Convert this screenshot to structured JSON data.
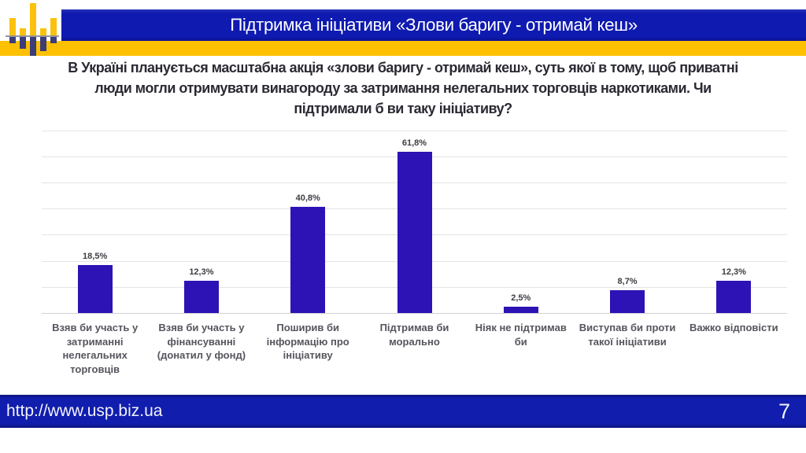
{
  "slide": {
    "header_title": "Підтримка ініціативи «Злови баригу - отримай кеш»",
    "question": "В Україні планується масштабна акція «злови баригу - отримай кеш», суть якої в тому, щоб приватні\nлюди могли отримувати винагороду за затримання нелегальних торговців наркотиками. Чи\nпідтримали б ви таку ініціативу?",
    "footer_url": "http://www.usp.biz.ua",
    "page_number": "7"
  },
  "colors": {
    "header_footer_blue": "#101bb0",
    "bar_blue": "#2d13b5",
    "accent_yellow": "#fdc101",
    "logo_navy": "#3d3d78",
    "question_text": "#2b2a33",
    "label_gray": "#55555d"
  },
  "chart_data": {
    "type": "bar",
    "title": "",
    "xlabel": "",
    "ylabel": "",
    "ylim": [
      0,
      70
    ],
    "grid": true,
    "gridline_step_pct": 10,
    "categories": [
      "Взяв би участь у\nзатриманні\nнелегальних\nторговців",
      "Взяв би участь у\nфінансуванні\n(донатил у фонд)",
      "Поширив би\nінформацію про\nініціативу",
      "Підтримав би\nморально",
      "Ніяк не підтримав\nби",
      "Виступав би проти\nтакої ініціативи",
      "Важко відповісти"
    ],
    "values": [
      18.5,
      12.3,
      40.8,
      61.8,
      2.5,
      8.7,
      12.3
    ],
    "data_labels": [
      "18,5%",
      "12,3%",
      "40,8%",
      "61,8%",
      "2,5%",
      "8,7%",
      "12,3%"
    ]
  }
}
